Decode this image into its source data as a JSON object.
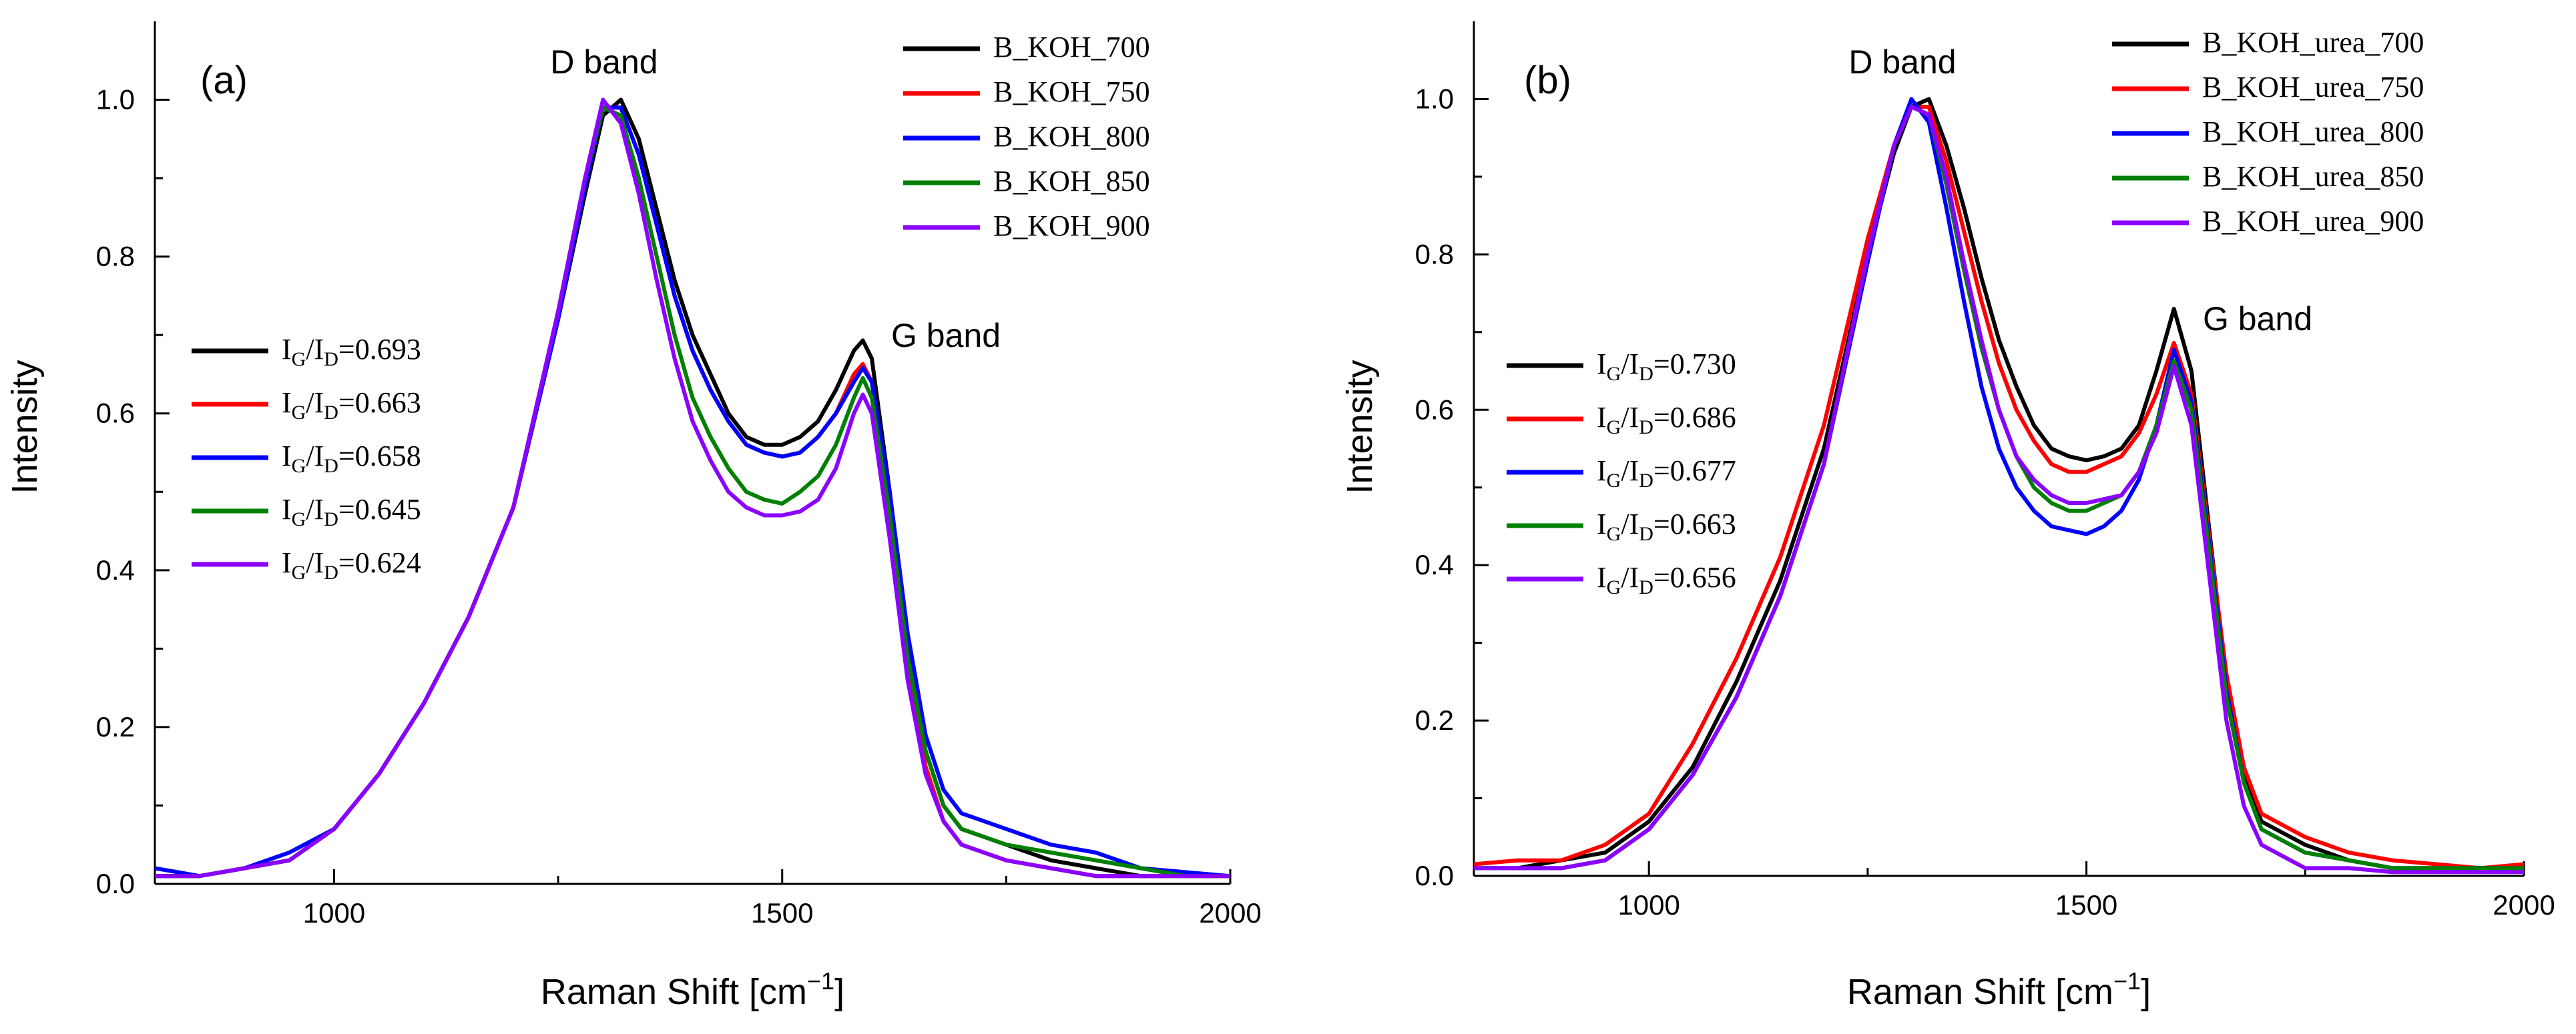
{
  "chart_data": [
    {
      "panel_label": "(a)",
      "type": "line",
      "xlabel": "Raman Shift [cm",
      "xlabel_sup": "−1",
      "xlabel_end": "]",
      "ylabel": "Intensity",
      "xlim": [
        800,
        2000
      ],
      "ylim": [
        0,
        1.1
      ],
      "x_ticks": [
        1000,
        1500,
        2000
      ],
      "y_ticks": [
        0.0,
        0.2,
        0.4,
        0.6,
        0.8,
        1.0
      ],
      "x_tick_labels": [
        "1000",
        "1500",
        "2000"
      ],
      "y_tick_labels": [
        "0.0",
        "0.2",
        "0.4",
        "0.6",
        "0.8",
        "1.0"
      ],
      "annotations": [
        {
          "text": "D band",
          "x": 1300,
          "y": 1.03
        },
        {
          "text": "G band",
          "x": 1650,
          "y": 0.68
        }
      ],
      "ratio_labels": [
        {
          "text": "=0.693",
          "color": "#000000"
        },
        {
          "text": "=0.663",
          "color": "#ff0000"
        },
        {
          "text": "=0.658",
          "color": "#0000ff"
        },
        {
          "text": "=0.645",
          "color": "#008000"
        },
        {
          "text": "=0.624",
          "color": "#8b00ff"
        }
      ],
      "ratio_symbol": {
        "main": "I",
        "sub_g": "G",
        "sub_d": "D"
      },
      "series": [
        {
          "name": "B_KOH_700",
          "color": "#000000",
          "x": [
            800,
            850,
            900,
            950,
            1000,
            1050,
            1100,
            1150,
            1200,
            1250,
            1280,
            1300,
            1320,
            1340,
            1360,
            1380,
            1400,
            1420,
            1440,
            1460,
            1480,
            1500,
            1520,
            1540,
            1560,
            1580,
            1590,
            1600,
            1620,
            1640,
            1660,
            1680,
            1700,
            1750,
            1800,
            1850,
            1900,
            1950,
            2000
          ],
          "y": [
            0.01,
            0.01,
            0.02,
            0.03,
            0.07,
            0.14,
            0.23,
            0.34,
            0.48,
            0.72,
            0.88,
            0.98,
            1.0,
            0.95,
            0.86,
            0.77,
            0.7,
            0.65,
            0.6,
            0.57,
            0.56,
            0.56,
            0.57,
            0.59,
            0.63,
            0.68,
            0.693,
            0.67,
            0.5,
            0.3,
            0.17,
            0.1,
            0.07,
            0.05,
            0.03,
            0.02,
            0.01,
            0.01,
            0.01
          ]
        },
        {
          "name": "B_KOH_750",
          "color": "#ff0000",
          "x": [
            800,
            850,
            900,
            950,
            1000,
            1050,
            1100,
            1150,
            1200,
            1250,
            1280,
            1300,
            1320,
            1340,
            1360,
            1380,
            1400,
            1420,
            1440,
            1460,
            1480,
            1500,
            1520,
            1540,
            1560,
            1580,
            1590,
            1600,
            1620,
            1640,
            1660,
            1680,
            1700,
            1750,
            1800,
            1850,
            1900,
            1950,
            2000
          ],
          "y": [
            0.01,
            0.01,
            0.02,
            0.03,
            0.07,
            0.14,
            0.23,
            0.34,
            0.48,
            0.72,
            0.89,
            0.99,
            0.99,
            0.93,
            0.84,
            0.75,
            0.68,
            0.63,
            0.59,
            0.56,
            0.55,
            0.545,
            0.55,
            0.57,
            0.6,
            0.65,
            0.663,
            0.64,
            0.48,
            0.28,
            0.15,
            0.08,
            0.05,
            0.03,
            0.02,
            0.01,
            0.01,
            0.01,
            0.01
          ]
        },
        {
          "name": "B_KOH_800",
          "color": "#0000ff",
          "x": [
            800,
            850,
            900,
            950,
            1000,
            1050,
            1100,
            1150,
            1200,
            1250,
            1280,
            1300,
            1320,
            1340,
            1360,
            1380,
            1400,
            1420,
            1440,
            1460,
            1480,
            1500,
            1520,
            1540,
            1560,
            1580,
            1590,
            1600,
            1620,
            1640,
            1660,
            1680,
            1700,
            1750,
            1800,
            1850,
            1900,
            1950,
            2000
          ],
          "y": [
            0.02,
            0.01,
            0.02,
            0.04,
            0.07,
            0.14,
            0.23,
            0.34,
            0.48,
            0.72,
            0.89,
            0.99,
            0.99,
            0.93,
            0.84,
            0.75,
            0.68,
            0.63,
            0.59,
            0.56,
            0.55,
            0.545,
            0.55,
            0.57,
            0.6,
            0.64,
            0.658,
            0.64,
            0.5,
            0.32,
            0.19,
            0.12,
            0.09,
            0.07,
            0.05,
            0.04,
            0.02,
            0.015,
            0.01
          ]
        },
        {
          "name": "B_KOH_850",
          "color": "#008000",
          "x": [
            800,
            850,
            900,
            950,
            1000,
            1050,
            1100,
            1150,
            1200,
            1250,
            1280,
            1300,
            1320,
            1340,
            1360,
            1380,
            1400,
            1420,
            1440,
            1460,
            1480,
            1500,
            1520,
            1540,
            1560,
            1580,
            1590,
            1600,
            1620,
            1640,
            1660,
            1680,
            1700,
            1750,
            1800,
            1850,
            1900,
            1950,
            2000
          ],
          "y": [
            0.01,
            0.01,
            0.02,
            0.03,
            0.07,
            0.14,
            0.23,
            0.34,
            0.48,
            0.73,
            0.9,
            0.99,
            0.98,
            0.9,
            0.8,
            0.7,
            0.62,
            0.57,
            0.53,
            0.5,
            0.49,
            0.485,
            0.5,
            0.52,
            0.56,
            0.62,
            0.645,
            0.62,
            0.47,
            0.29,
            0.17,
            0.1,
            0.07,
            0.05,
            0.04,
            0.03,
            0.02,
            0.01,
            0.01
          ]
        },
        {
          "name": "B_KOH_900",
          "color": "#8b00ff",
          "x": [
            800,
            850,
            900,
            950,
            1000,
            1050,
            1100,
            1150,
            1200,
            1250,
            1280,
            1300,
            1320,
            1340,
            1360,
            1380,
            1400,
            1420,
            1440,
            1460,
            1480,
            1500,
            1520,
            1540,
            1560,
            1580,
            1590,
            1600,
            1620,
            1640,
            1660,
            1680,
            1700,
            1750,
            1800,
            1850,
            1900,
            1950,
            2000
          ],
          "y": [
            0.01,
            0.01,
            0.02,
            0.03,
            0.07,
            0.14,
            0.23,
            0.34,
            0.48,
            0.73,
            0.9,
            1.0,
            0.97,
            0.88,
            0.77,
            0.67,
            0.59,
            0.54,
            0.5,
            0.48,
            0.47,
            0.47,
            0.475,
            0.49,
            0.53,
            0.6,
            0.624,
            0.6,
            0.44,
            0.26,
            0.14,
            0.08,
            0.05,
            0.03,
            0.02,
            0.01,
            0.01,
            0.01,
            0.01
          ]
        }
      ]
    },
    {
      "panel_label": "(b)",
      "type": "line",
      "xlabel": "Raman Shift [cm",
      "xlabel_sup": "−1",
      "xlabel_end": "]",
      "ylabel": "Intensity",
      "xlim": [
        800,
        2000
      ],
      "ylim": [
        0,
        1.1
      ],
      "x_ticks": [
        1000,
        1500,
        2000
      ],
      "y_ticks": [
        0.0,
        0.2,
        0.4,
        0.6,
        0.8,
        1.0
      ],
      "x_tick_labels": [
        "1000",
        "1500",
        "2000"
      ],
      "y_tick_labels": [
        "0.0",
        "0.2",
        "0.4",
        "0.6",
        "0.8",
        "1.0"
      ],
      "annotations": [
        {
          "text": "D band",
          "x": 1300,
          "y": 1.03
        },
        {
          "text": "G band",
          "x": 1680,
          "y": 0.72
        }
      ],
      "ratio_labels": [
        {
          "text": "=0.730",
          "color": "#000000"
        },
        {
          "text": "=0.686",
          "color": "#ff0000"
        },
        {
          "text": "=0.677",
          "color": "#0000ff"
        },
        {
          "text": "=0.663",
          "color": "#008000"
        },
        {
          "text": "=0.656",
          "color": "#8b00ff"
        }
      ],
      "ratio_symbol": {
        "main": "I",
        "sub_g": "G",
        "sub_d": "D"
      },
      "series": [
        {
          "name": "B_KOH_urea_700",
          "color": "#000000",
          "x": [
            800,
            850,
            900,
            950,
            1000,
            1050,
            1100,
            1150,
            1200,
            1250,
            1280,
            1300,
            1320,
            1340,
            1360,
            1380,
            1400,
            1420,
            1440,
            1460,
            1480,
            1500,
            1520,
            1540,
            1560,
            1580,
            1600,
            1620,
            1640,
            1660,
            1680,
            1700,
            1750,
            1800,
            1850,
            1900,
            1950,
            2000
          ],
          "y": [
            0.01,
            0.01,
            0.02,
            0.03,
            0.07,
            0.14,
            0.25,
            0.38,
            0.55,
            0.8,
            0.93,
            0.99,
            1.0,
            0.94,
            0.86,
            0.77,
            0.69,
            0.63,
            0.58,
            0.55,
            0.54,
            0.535,
            0.54,
            0.55,
            0.58,
            0.65,
            0.73,
            0.65,
            0.45,
            0.25,
            0.13,
            0.07,
            0.04,
            0.02,
            0.01,
            0.01,
            0.01,
            0.01
          ]
        },
        {
          "name": "B_KOH_urea_750",
          "color": "#ff0000",
          "x": [
            800,
            850,
            900,
            950,
            1000,
            1050,
            1100,
            1150,
            1200,
            1250,
            1280,
            1300,
            1320,
            1340,
            1360,
            1380,
            1400,
            1420,
            1440,
            1460,
            1480,
            1500,
            1520,
            1540,
            1560,
            1580,
            1600,
            1620,
            1640,
            1660,
            1680,
            1700,
            1750,
            1800,
            1850,
            1900,
            1950,
            2000
          ],
          "y": [
            0.015,
            0.02,
            0.02,
            0.04,
            0.08,
            0.17,
            0.28,
            0.41,
            0.58,
            0.82,
            0.94,
            0.99,
            0.99,
            0.92,
            0.83,
            0.74,
            0.66,
            0.6,
            0.56,
            0.53,
            0.52,
            0.52,
            0.53,
            0.54,
            0.57,
            0.62,
            0.686,
            0.62,
            0.44,
            0.26,
            0.14,
            0.08,
            0.05,
            0.03,
            0.02,
            0.015,
            0.01,
            0.015
          ]
        },
        {
          "name": "B_KOH_urea_800",
          "color": "#0000ff",
          "x": [
            800,
            850,
            900,
            950,
            1000,
            1050,
            1100,
            1150,
            1200,
            1250,
            1280,
            1300,
            1320,
            1340,
            1360,
            1380,
            1400,
            1420,
            1440,
            1460,
            1480,
            1500,
            1520,
            1540,
            1560,
            1580,
            1600,
            1620,
            1640,
            1660,
            1680,
            1700,
            1750,
            1800,
            1850,
            1900,
            1950,
            2000
          ],
          "y": [
            0.01,
            0.01,
            0.01,
            0.02,
            0.06,
            0.13,
            0.23,
            0.36,
            0.53,
            0.79,
            0.94,
            1.0,
            0.97,
            0.86,
            0.74,
            0.63,
            0.55,
            0.5,
            0.47,
            0.45,
            0.445,
            0.44,
            0.45,
            0.47,
            0.51,
            0.58,
            0.677,
            0.61,
            0.43,
            0.24,
            0.12,
            0.06,
            0.03,
            0.02,
            0.01,
            0.01,
            0.01,
            0.01
          ]
        },
        {
          "name": "B_KOH_urea_850",
          "color": "#008000",
          "x": [
            800,
            850,
            900,
            950,
            1000,
            1050,
            1100,
            1150,
            1200,
            1250,
            1280,
            1300,
            1320,
            1340,
            1360,
            1380,
            1400,
            1420,
            1440,
            1460,
            1480,
            1500,
            1520,
            1540,
            1560,
            1580,
            1600,
            1620,
            1640,
            1660,
            1680,
            1700,
            1750,
            1800,
            1850,
            1900,
            1950,
            2000
          ],
          "y": [
            0.01,
            0.01,
            0.01,
            0.02,
            0.06,
            0.13,
            0.23,
            0.36,
            0.53,
            0.8,
            0.94,
            0.99,
            0.98,
            0.89,
            0.78,
            0.68,
            0.6,
            0.54,
            0.5,
            0.48,
            0.47,
            0.47,
            0.48,
            0.49,
            0.52,
            0.58,
            0.663,
            0.6,
            0.42,
            0.23,
            0.12,
            0.06,
            0.03,
            0.02,
            0.01,
            0.01,
            0.01,
            0.01
          ]
        },
        {
          "name": "B_KOH_urea_900",
          "color": "#8b00ff",
          "x": [
            800,
            850,
            900,
            950,
            1000,
            1050,
            1100,
            1150,
            1200,
            1250,
            1280,
            1300,
            1320,
            1340,
            1360,
            1380,
            1400,
            1420,
            1440,
            1460,
            1480,
            1500,
            1520,
            1540,
            1560,
            1580,
            1600,
            1620,
            1640,
            1660,
            1680,
            1700,
            1750,
            1800,
            1850,
            1900,
            1950,
            2000
          ],
          "y": [
            0.01,
            0.01,
            0.01,
            0.02,
            0.06,
            0.13,
            0.23,
            0.36,
            0.53,
            0.8,
            0.94,
            0.99,
            0.98,
            0.9,
            0.79,
            0.69,
            0.6,
            0.54,
            0.51,
            0.49,
            0.48,
            0.48,
            0.485,
            0.49,
            0.52,
            0.57,
            0.656,
            0.58,
            0.39,
            0.2,
            0.09,
            0.04,
            0.01,
            0.01,
            0.005,
            0.005,
            0.005,
            0.005
          ]
        }
      ]
    }
  ]
}
